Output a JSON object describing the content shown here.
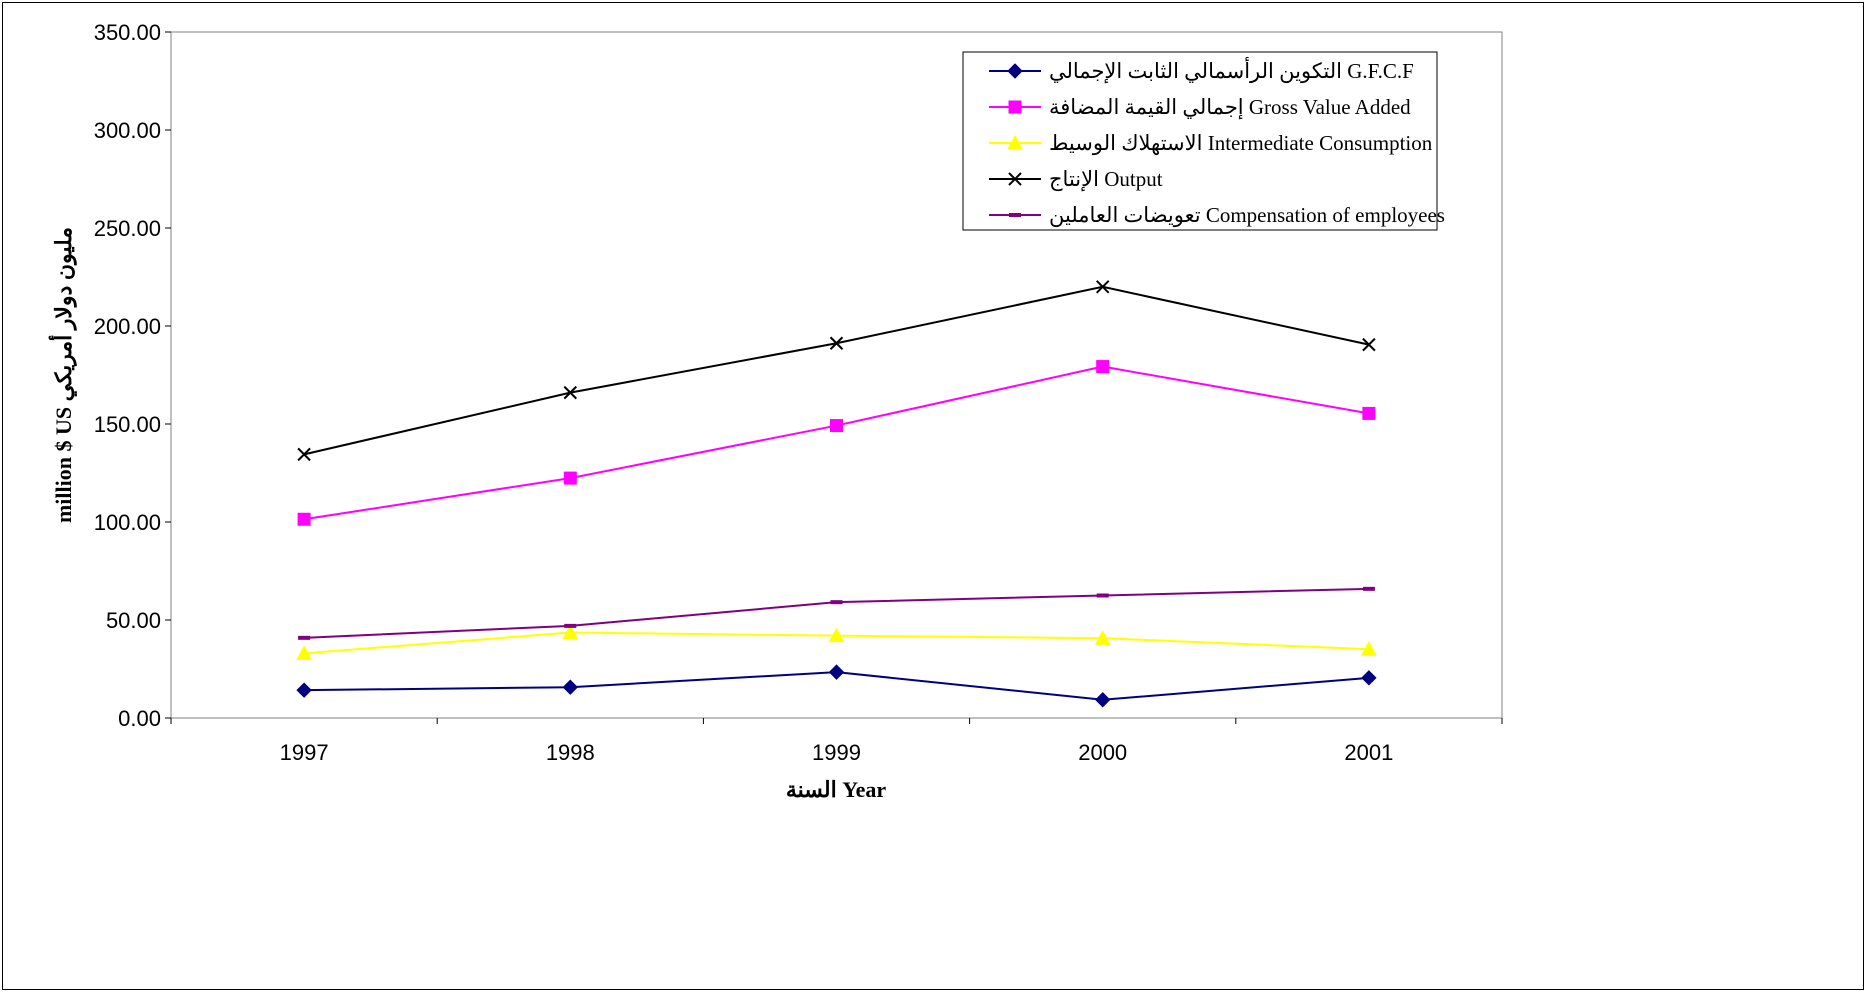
{
  "chart_data": {
    "type": "line",
    "title": "",
    "xlabel": "السنة Year",
    "ylabel": "million $ US مليون دولار أمريكي",
    "categories": [
      "1997",
      "1998",
      "1999",
      "2000",
      "2001"
    ],
    "ylim": [
      0,
      350
    ],
    "yticks": [
      "0.00",
      "50.00",
      "100.00",
      "150.00",
      "200.00",
      "250.00",
      "300.00",
      "350.00"
    ],
    "grid": false,
    "legend_position": "top-right",
    "series": [
      {
        "name": "التكوين الرأسمالي الثابت الإجمالي G.F.C.F",
        "color": "#000080",
        "marker": "diamond",
        "values": [
          14.2,
          15.7,
          23.4,
          9.3,
          20.5
        ]
      },
      {
        "name": "إجمالي القيمة المضافة Gross Value Added",
        "color": "#FF00FF",
        "marker": "square",
        "values": [
          101.4,
          122.4,
          149.2,
          179.3,
          155.4
        ]
      },
      {
        "name": "الاستهلاك الوسيط Intermediate Consumption",
        "color": "#FFFF00",
        "marker": "triangle",
        "values": [
          33.0,
          43.6,
          42.0,
          40.7,
          35.1
        ]
      },
      {
        "name": "الإنتاج Output",
        "color": "#000000",
        "marker": "x",
        "values": [
          134.5,
          166.0,
          191.2,
          220.0,
          190.5
        ]
      },
      {
        "name": "تعويضات العاملين Compensation of employees",
        "color": "#800080",
        "marker": "dash",
        "values": [
          40.9,
          47.0,
          59.1,
          62.5,
          65.9
        ]
      }
    ]
  }
}
